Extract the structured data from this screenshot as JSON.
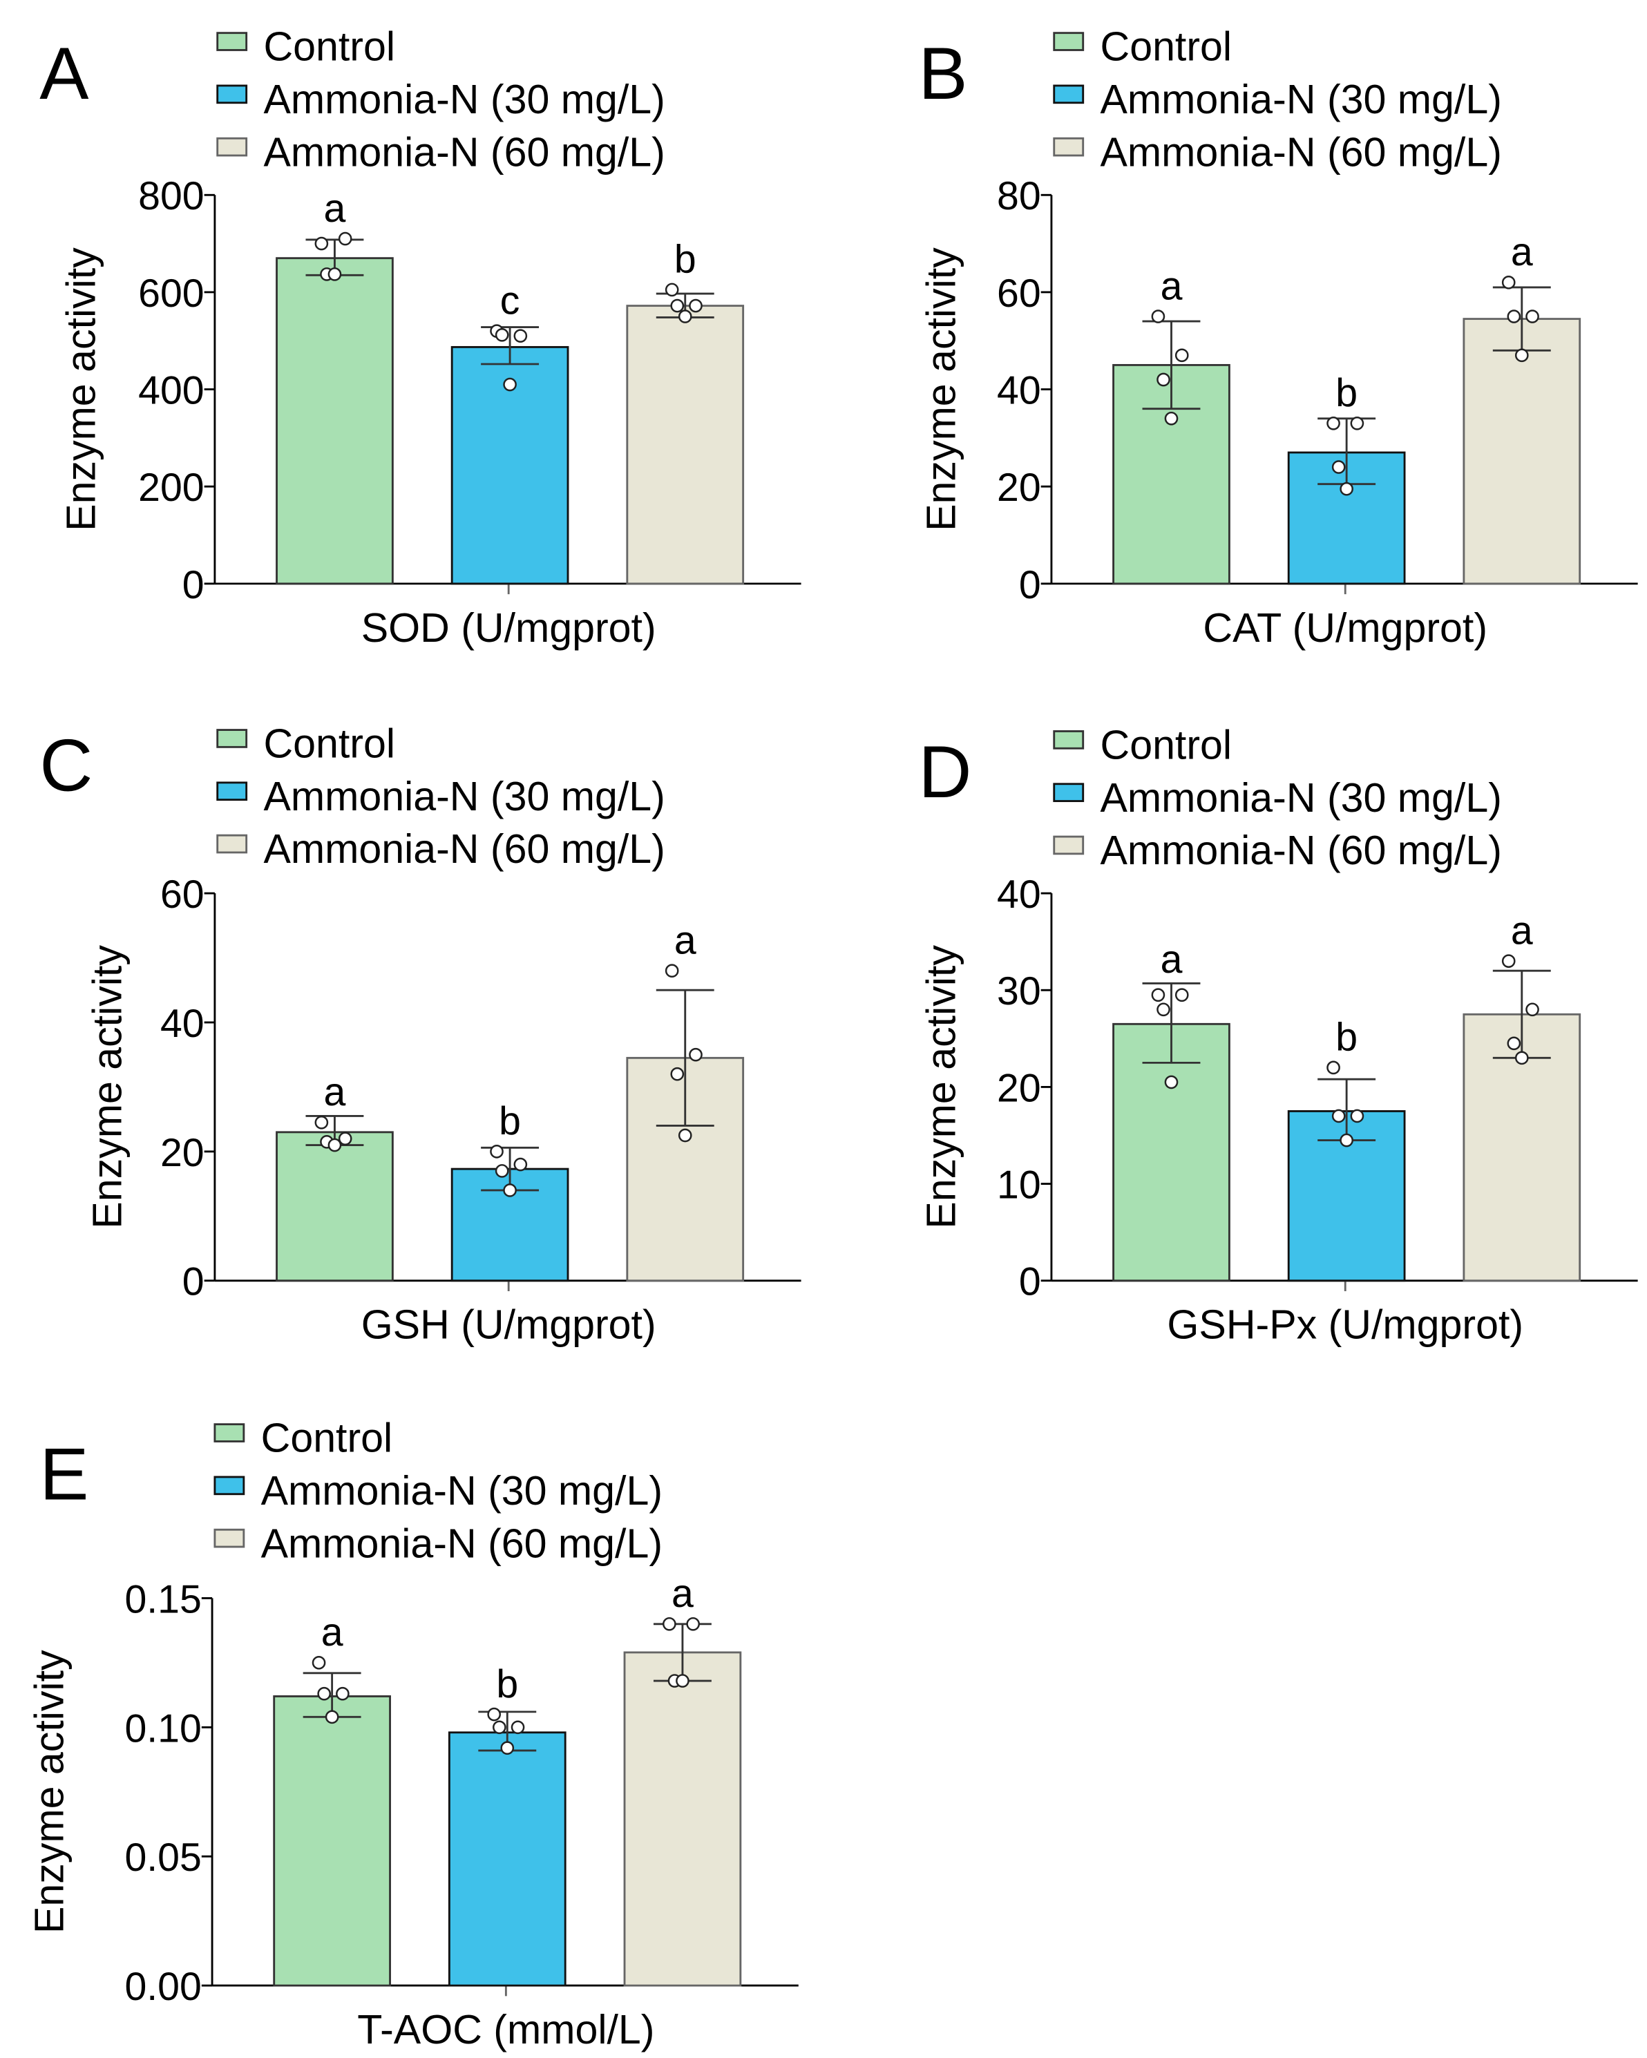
{
  "colors": {
    "control": "#a8e0b2",
    "n30": "#3fc1ea",
    "n60": "#e8e6d6"
  },
  "chart_data": [
    {
      "type": "bar",
      "panel": "A",
      "xlabel": "SOD (U/mgprot)",
      "ylabel": "Enzyme activity",
      "ylim": [
        0,
        800
      ],
      "yticks": [
        "0",
        "200",
        "400",
        "600",
        "800"
      ],
      "ytick_values": [
        0,
        200,
        400,
        600,
        800
      ],
      "legend": [
        "Control",
        "Ammonia-N (30 mg/L)",
        "Ammonia-N (60 mg/L)"
      ],
      "legend_placement": "top",
      "series": [
        {
          "name": "Control",
          "value": 670,
          "err": [
            635,
            708
          ],
          "points": [
            700,
            710,
            637,
            637
          ],
          "letter": "a"
        },
        {
          "name": "Ammonia-N (30 mg/L)",
          "value": 487,
          "err": [
            452,
            528
          ],
          "points": [
            520,
            510,
            512,
            410
          ],
          "letter": "c"
        },
        {
          "name": "Ammonia-N (60 mg/L)",
          "value": 572,
          "err": [
            548,
            597
          ],
          "points": [
            605,
            572,
            572,
            550
          ],
          "letter": "b"
        }
      ]
    },
    {
      "type": "bar",
      "panel": "B",
      "xlabel": "CAT (U/mgprot)",
      "ylabel": "Enzyme activity",
      "ylim": [
        0,
        80
      ],
      "yticks": [
        "0",
        "20",
        "40",
        "60",
        "80"
      ],
      "ytick_values": [
        0,
        20,
        40,
        60,
        80
      ],
      "legend": [
        "Control",
        "Ammonia-N (30 mg/L)",
        "Ammonia-N (60 mg/L)"
      ],
      "legend_placement": "top",
      "series": [
        {
          "name": "Control",
          "value": 45,
          "err": [
            36,
            54
          ],
          "points": [
            55,
            47,
            42,
            34
          ],
          "letter": "a"
        },
        {
          "name": "Ammonia-N (30 mg/L)",
          "value": 27,
          "err": [
            20.5,
            34
          ],
          "points": [
            33,
            33,
            24,
            19.5
          ],
          "letter": "b"
        },
        {
          "name": "Ammonia-N (60 mg/L)",
          "value": 54.5,
          "err": [
            48,
            61
          ],
          "points": [
            62,
            55,
            55,
            47
          ],
          "letter": "a"
        }
      ]
    },
    {
      "type": "bar",
      "panel": "C",
      "xlabel": "GSH (U/mgprot)",
      "ylabel": "Enzyme activity",
      "ylim": [
        0,
        60
      ],
      "yticks": [
        "0",
        "20",
        "40",
        "60"
      ],
      "ytick_values": [
        0,
        20,
        40,
        60
      ],
      "legend": [
        "Control",
        "Ammonia-N (30 mg/L)",
        "Ammonia-N (60 mg/L)"
      ],
      "legend_placement": "top",
      "series": [
        {
          "name": "Control",
          "value": 23,
          "err": [
            21,
            25.5
          ],
          "points": [
            24.5,
            22,
            21.5,
            21
          ],
          "letter": "a"
        },
        {
          "name": "Ammonia-N (30 mg/L)",
          "value": 17.3,
          "err": [
            14,
            20.6
          ],
          "points": [
            20,
            18,
            17,
            14
          ],
          "letter": "b"
        },
        {
          "name": "Ammonia-N (60 mg/L)",
          "value": 34.5,
          "err": [
            24,
            45
          ],
          "points": [
            48,
            35,
            32,
            22.5
          ],
          "letter": "a"
        }
      ]
    },
    {
      "type": "bar",
      "panel": "D",
      "xlabel": "GSH-Px (U/mgprot)",
      "ylabel": "Enzyme activity",
      "ylim": [
        0,
        40
      ],
      "yticks": [
        "0",
        "10",
        "20",
        "30",
        "40"
      ],
      "ytick_values": [
        0,
        10,
        20,
        30,
        40
      ],
      "legend": [
        "Control",
        "Ammonia-N (30 mg/L)",
        "Ammonia-N (60 mg/L)"
      ],
      "legend_placement": "top",
      "series": [
        {
          "name": "Control",
          "value": 26.5,
          "err": [
            22.5,
            30.7
          ],
          "points": [
            29.5,
            29.5,
            28,
            20.5
          ],
          "letter": "a"
        },
        {
          "name": "Ammonia-N (30 mg/L)",
          "value": 17.5,
          "err": [
            14.5,
            20.8
          ],
          "points": [
            22,
            17,
            17,
            14.5
          ],
          "letter": "b"
        },
        {
          "name": "Ammonia-N (60 mg/L)",
          "value": 27.5,
          "err": [
            23,
            32
          ],
          "points": [
            33,
            28,
            24.5,
            23
          ],
          "letter": "a"
        }
      ]
    },
    {
      "type": "bar",
      "panel": "E",
      "xlabel": "T-AOC (mmol/L)",
      "ylabel": "Enzyme activity",
      "ylim": [
        0,
        0.15
      ],
      "yticks": [
        "0.00",
        "0.05",
        "0.10",
        "0.15"
      ],
      "ytick_values": [
        0,
        0.05,
        0.1,
        0.15
      ],
      "legend": [
        "Control",
        "Ammonia-N (30 mg/L)",
        "Ammonia-N (60 mg/L)"
      ],
      "legend_placement": "top",
      "series": [
        {
          "name": "Control",
          "value": 0.112,
          "err": [
            0.104,
            0.121
          ],
          "points": [
            0.125,
            0.113,
            0.113,
            0.104
          ],
          "letter": "a"
        },
        {
          "name": "Ammonia-N (30 mg/L)",
          "value": 0.098,
          "err": [
            0.091,
            0.106
          ],
          "points": [
            0.105,
            0.1,
            0.1,
            0.092
          ],
          "letter": "b"
        },
        {
          "name": "Ammonia-N (60 mg/L)",
          "value": 0.129,
          "err": [
            0.118,
            0.14
          ],
          "points": [
            0.14,
            0.14,
            0.118,
            0.118
          ],
          "letter": "a"
        }
      ]
    }
  ]
}
